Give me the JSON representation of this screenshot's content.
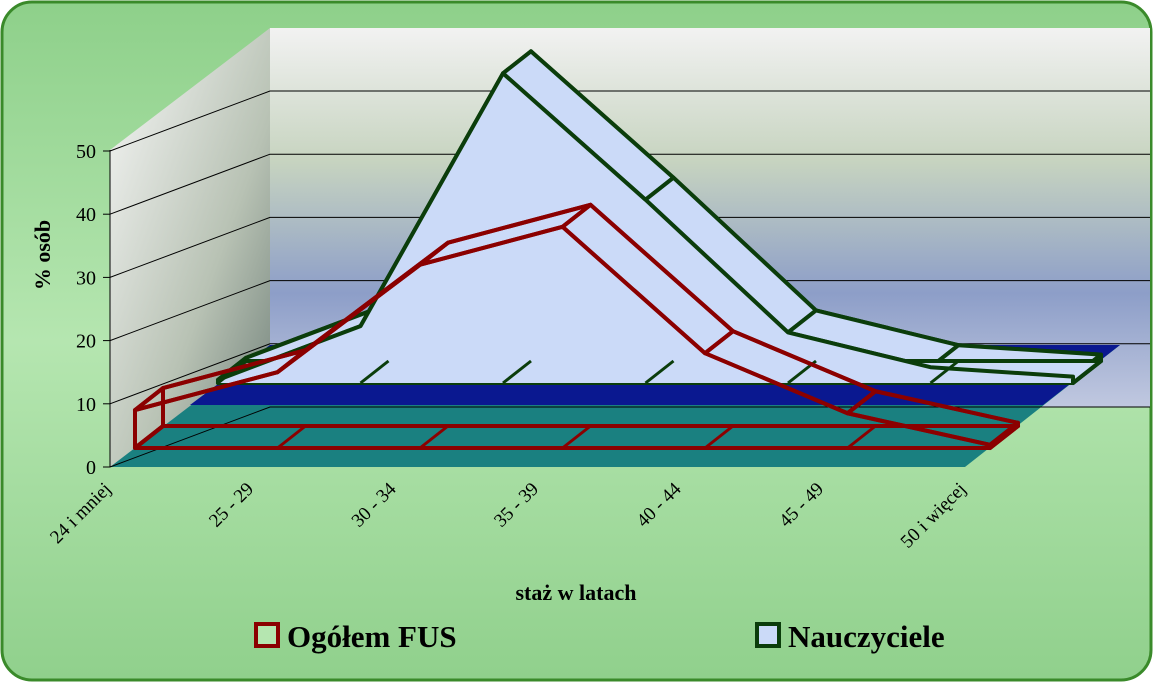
{
  "chart_data": {
    "type": "area3d",
    "y_label": "% osób",
    "x_label": "staż w latach",
    "categories": [
      "24 i mniej",
      "25 - 29",
      "30 - 34",
      "35 - 39",
      "40 - 44",
      "45 - 49",
      "50 i więcej"
    ],
    "series": [
      {
        "name": "Ogółem FUS",
        "color": "#8b0000",
        "fill": "none",
        "values": [
          6,
          12,
          29,
          35,
          15,
          5.5,
          0.5
        ]
      },
      {
        "name": "Nauczyciele",
        "color": "#0b3d0b",
        "fill": "#cbdaf8",
        "values": [
          0.5,
          9,
          49,
          29,
          8,
          2.5,
          1
        ]
      }
    ],
    "ylim": [
      0,
      50
    ],
    "yticks": [
      0,
      10,
      20,
      30,
      40,
      50
    ],
    "grid": true
  }
}
